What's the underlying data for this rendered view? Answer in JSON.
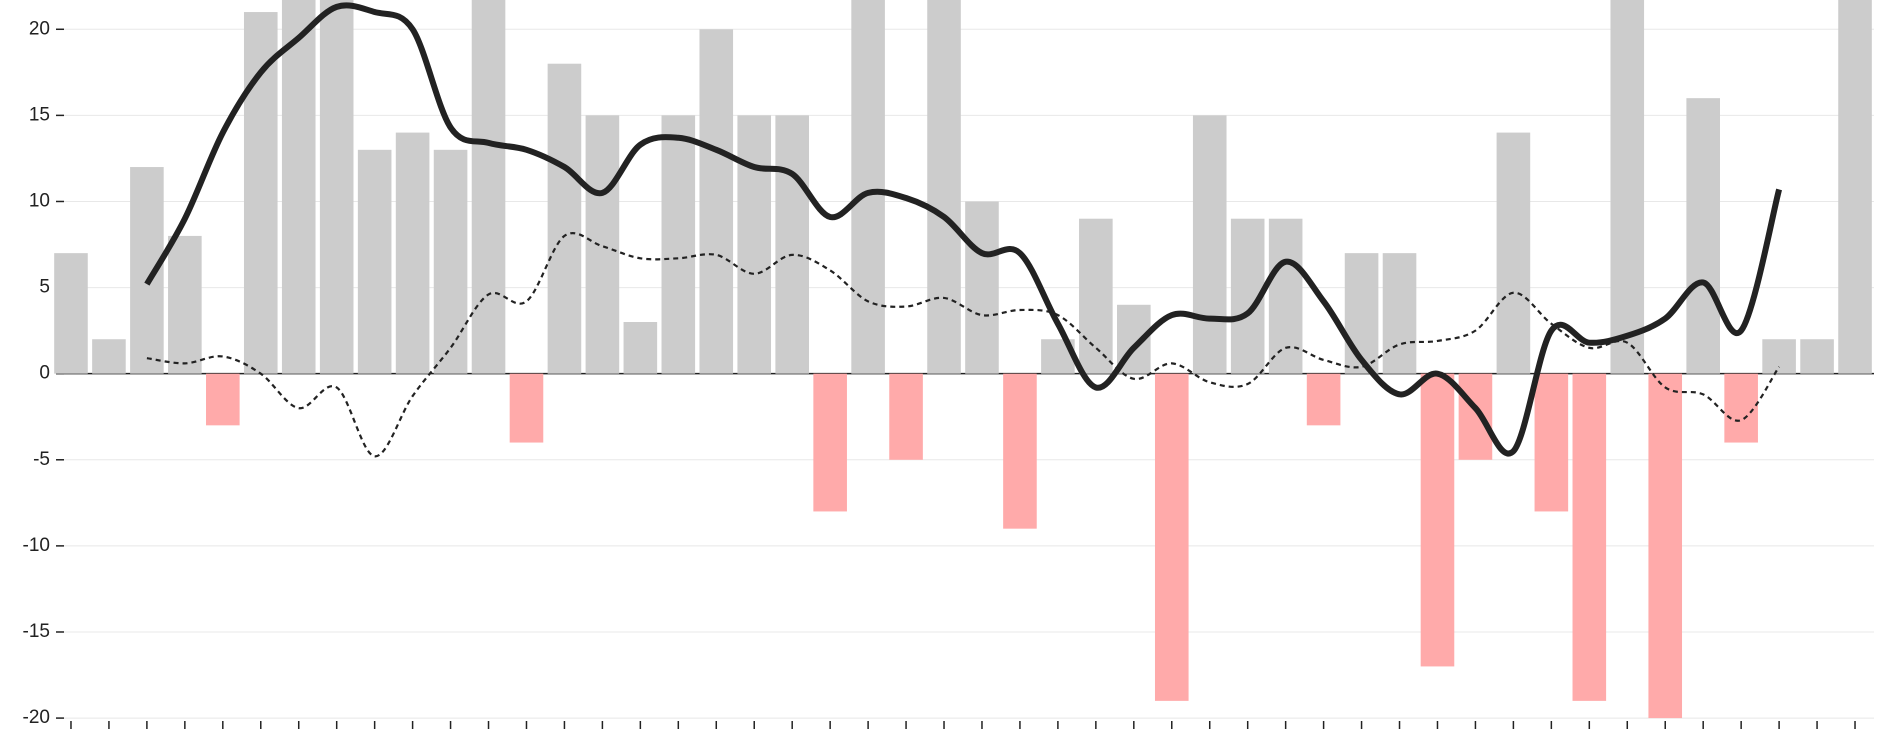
{
  "chart_data": {
    "type": "bar-line",
    "categories": [
      null,
      null,
      null,
      null,
      null,
      null,
      null,
      null,
      null,
      null,
      null,
      null,
      null,
      null,
      null,
      null,
      null,
      null,
      null,
      null,
      null,
      null,
      null,
      null,
      null,
      null,
      null,
      null,
      null,
      null,
      null,
      null,
      null,
      null,
      null,
      null,
      null,
      null,
      null,
      null,
      null,
      null,
      null,
      null,
      null,
      null,
      null,
      null
    ],
    "bars": {
      "values": [
        7,
        2,
        12,
        8,
        -3,
        21,
        23,
        23,
        13,
        14,
        13,
        23,
        -4,
        18,
        15,
        3,
        15,
        20,
        15,
        15,
        -8,
        23,
        -5,
        23,
        10,
        -9,
        2,
        9,
        4,
        -19,
        15,
        9,
        9,
        -3,
        7,
        7,
        -17,
        -5,
        14,
        -8,
        -19,
        23,
        -20,
        16,
        -4,
        2,
        2,
        23
      ],
      "color": "#cccccc",
      "negative_color": "#ffaaaa"
    },
    "series": [
      {
        "values": [
          null,
          null,
          5.2,
          9,
          14,
          17.5,
          19.5,
          21.3,
          21,
          20,
          14.3,
          13.4,
          13,
          12,
          10.5,
          13.3,
          13.7,
          13,
          12,
          11.6,
          9.1,
          10.5,
          10.2,
          9.1,
          7,
          7,
          2.9,
          -0.8,
          1.5,
          3.4,
          3.2,
          3.5,
          6.5,
          4.2,
          0.8,
          -1.2,
          0,
          -2,
          -4.5,
          2.5,
          1.8,
          2.2,
          3.2,
          5.3,
          2.5,
          10.7,
          null,
          null
        ],
        "color": "#222222",
        "dashed": false
      },
      {
        "values": [
          null,
          null,
          0.9,
          0.6,
          1,
          0,
          -2,
          -0.8,
          -4.8,
          -1.3,
          1.5,
          4.6,
          4.2,
          8,
          7.4,
          6.7,
          6.7,
          6.9,
          5.8,
          6.9,
          6,
          4.2,
          3.9,
          4.4,
          3.4,
          3.7,
          3.4,
          1.5,
          -0.3,
          0.6,
          -0.5,
          -0.6,
          1.5,
          0.8,
          0.4,
          1.7,
          1.9,
          2.5,
          4.7,
          2.9,
          1.5,
          1.8,
          -0.8,
          -1.2,
          -2.7,
          0.4,
          null,
          null
        ],
        "color": "#222222",
        "dashed": true
      }
    ],
    "ylim": [
      -20.75,
      21.7
    ],
    "yticks": [
      -20,
      -15,
      -10,
      -5,
      0,
      5,
      10,
      15,
      20
    ],
    "grid": true
  }
}
